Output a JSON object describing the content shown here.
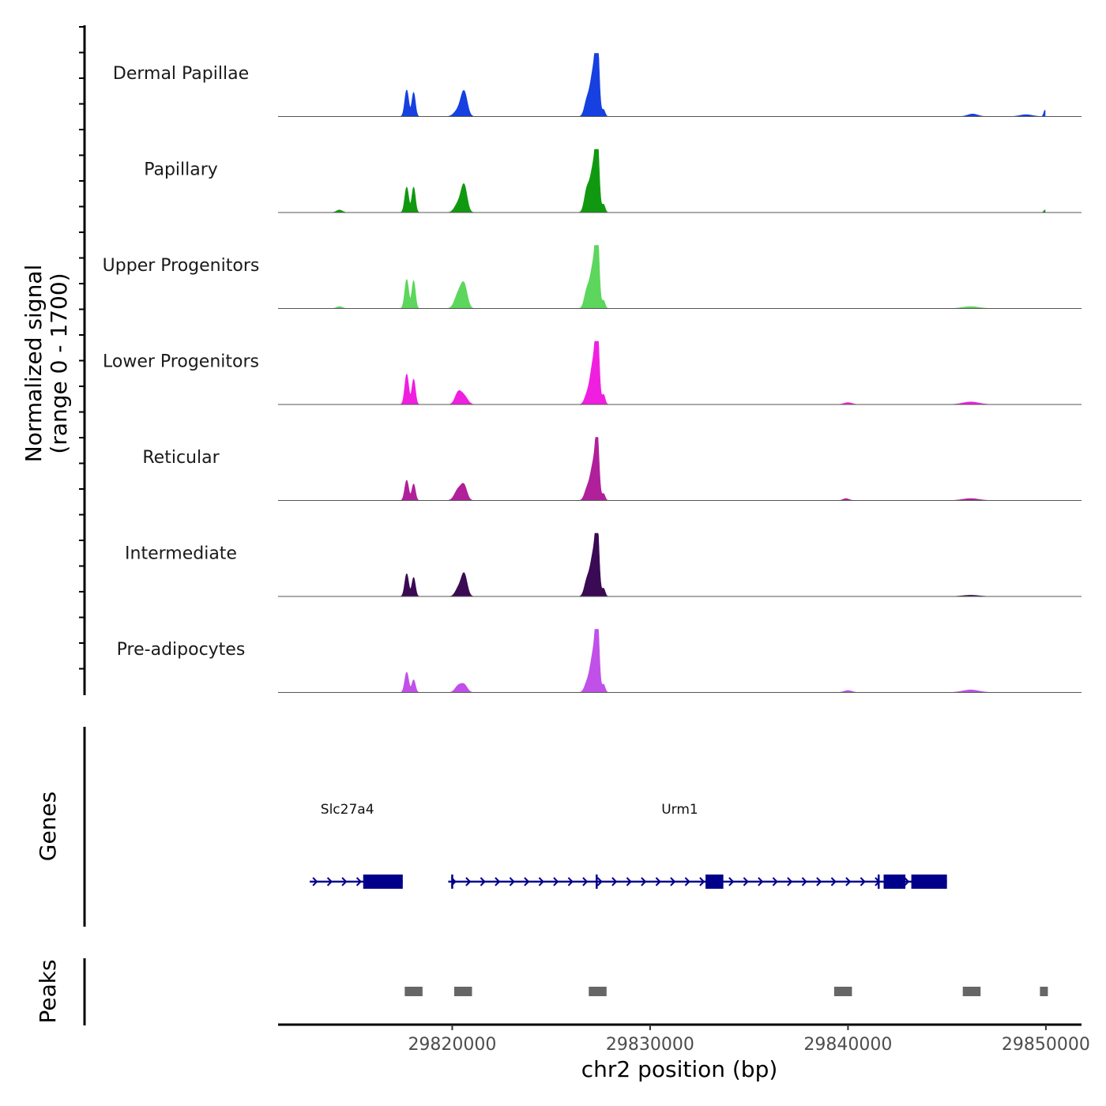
{
  "chart_data": {
    "type": "area",
    "title": "",
    "ylabel_line1": "Normalized signal",
    "ylabel_line2": "(range 0 - 1700)",
    "xlabel": "chr2 position (bp)",
    "xlim": [
      29811200,
      29851800
    ],
    "ylim": [
      0,
      1700
    ],
    "x_ticks": [
      29820000,
      29830000,
      29840000,
      29850000
    ],
    "x_tick_labels": [
      "29820000",
      "29830000",
      "29840000",
      "29850000"
    ],
    "genes_panel_label": "Genes",
    "peaks_panel_label": "Peaks",
    "peak_regions": [
      {
        "start": 29817600,
        "end": 29818500
      },
      {
        "start": 29820100,
        "end": 29821000
      },
      {
        "start": 29826900,
        "end": 29827800
      },
      {
        "start": 29839300,
        "end": 29840200
      },
      {
        "start": 29845800,
        "end": 29846700
      },
      {
        "start": 29849700,
        "end": 29850100
      }
    ],
    "peak_color": "#666666",
    "gene_color": "#00008B",
    "genes": [
      {
        "name": "Slc27a4",
        "label_x": 29814700,
        "start": 29812800,
        "end": 29817500,
        "exons": [
          [
            29815500,
            29817500
          ]
        ]
      },
      {
        "name": "Urm1",
        "label_x": 29831500,
        "start": 29819800,
        "end": 29845000,
        "exons": [
          [
            29819950,
            29820050
          ],
          [
            29827250,
            29827350
          ],
          [
            29832800,
            29833700
          ],
          [
            29841500,
            29841600
          ],
          [
            29841800,
            29842900
          ],
          [
            29843200,
            29845000
          ]
        ]
      }
    ],
    "series": [
      {
        "name": "Dermal Papillae",
        "color": "#1740E0",
        "peaks": [
          {
            "x": 29817700,
            "h": 0.42,
            "w": 100
          },
          {
            "x": 29818050,
            "h": 0.38,
            "w": 90
          },
          {
            "x": 29820300,
            "h": 0.1,
            "w": 200
          },
          {
            "x": 29820600,
            "h": 0.38,
            "w": 160
          },
          {
            "x": 29826800,
            "h": 0.22,
            "w": 130
          },
          {
            "x": 29827150,
            "h": 0.75,
            "w": 170
          },
          {
            "x": 29827330,
            "h": 1.0,
            "w": 90
          },
          {
            "x": 29827650,
            "h": 0.1,
            "w": 80
          },
          {
            "x": 29846300,
            "h": 0.04,
            "w": 250
          },
          {
            "x": 29849000,
            "h": 0.03,
            "w": 300
          },
          {
            "x": 29849950,
            "h": 0.1,
            "w": 60
          }
        ]
      },
      {
        "name": "Papillary",
        "color": "#109910",
        "peaks": [
          {
            "x": 29814300,
            "h": 0.04,
            "w": 150
          },
          {
            "x": 29817700,
            "h": 0.4,
            "w": 100
          },
          {
            "x": 29818050,
            "h": 0.4,
            "w": 90
          },
          {
            "x": 29820300,
            "h": 0.14,
            "w": 180
          },
          {
            "x": 29820600,
            "h": 0.42,
            "w": 150
          },
          {
            "x": 29826800,
            "h": 0.32,
            "w": 130
          },
          {
            "x": 29827150,
            "h": 0.75,
            "w": 170
          },
          {
            "x": 29827330,
            "h": 0.9,
            "w": 90
          },
          {
            "x": 29827650,
            "h": 0.12,
            "w": 80
          },
          {
            "x": 29849950,
            "h": 0.04,
            "w": 60
          }
        ]
      },
      {
        "name": "Upper Progenitors",
        "color": "#5CD65C",
        "peaks": [
          {
            "x": 29814300,
            "h": 0.03,
            "w": 150
          },
          {
            "x": 29817700,
            "h": 0.46,
            "w": 100
          },
          {
            "x": 29818050,
            "h": 0.44,
            "w": 90
          },
          {
            "x": 29820300,
            "h": 0.22,
            "w": 180
          },
          {
            "x": 29820600,
            "h": 0.36,
            "w": 160
          },
          {
            "x": 29826800,
            "h": 0.25,
            "w": 130
          },
          {
            "x": 29827150,
            "h": 0.72,
            "w": 170
          },
          {
            "x": 29827330,
            "h": 1.0,
            "w": 90
          },
          {
            "x": 29827650,
            "h": 0.12,
            "w": 80
          },
          {
            "x": 29846200,
            "h": 0.03,
            "w": 400
          }
        ]
      },
      {
        "name": "Lower Progenitors",
        "color": "#F01FE0",
        "peaks": [
          {
            "x": 29817700,
            "h": 0.48,
            "w": 100
          },
          {
            "x": 29818050,
            "h": 0.4,
            "w": 90
          },
          {
            "x": 29820300,
            "h": 0.18,
            "w": 160
          },
          {
            "x": 29820600,
            "h": 0.13,
            "w": 180
          },
          {
            "x": 29826800,
            "h": 0.12,
            "w": 130
          },
          {
            "x": 29827150,
            "h": 0.7,
            "w": 170
          },
          {
            "x": 29827330,
            "h": 1.0,
            "w": 90
          },
          {
            "x": 29827650,
            "h": 0.15,
            "w": 80
          },
          {
            "x": 29840000,
            "h": 0.03,
            "w": 200
          },
          {
            "x": 29846200,
            "h": 0.04,
            "w": 400
          }
        ]
      },
      {
        "name": "Reticular",
        "color": "#B0209A",
        "peaks": [
          {
            "x": 29817700,
            "h": 0.32,
            "w": 100
          },
          {
            "x": 29818050,
            "h": 0.26,
            "w": 90
          },
          {
            "x": 29820300,
            "h": 0.17,
            "w": 180
          },
          {
            "x": 29820600,
            "h": 0.22,
            "w": 150
          },
          {
            "x": 29826800,
            "h": 0.15,
            "w": 130
          },
          {
            "x": 29827150,
            "h": 0.6,
            "w": 170
          },
          {
            "x": 29827330,
            "h": 0.8,
            "w": 90
          },
          {
            "x": 29827650,
            "h": 0.1,
            "w": 80
          },
          {
            "x": 29839900,
            "h": 0.03,
            "w": 150
          },
          {
            "x": 29846200,
            "h": 0.03,
            "w": 400
          }
        ]
      },
      {
        "name": "Intermediate",
        "color": "#3A0A55",
        "peaks": [
          {
            "x": 29817700,
            "h": 0.36,
            "w": 100
          },
          {
            "x": 29818050,
            "h": 0.3,
            "w": 90
          },
          {
            "x": 29820300,
            "h": 0.12,
            "w": 150
          },
          {
            "x": 29820600,
            "h": 0.36,
            "w": 150
          },
          {
            "x": 29826800,
            "h": 0.22,
            "w": 130
          },
          {
            "x": 29827150,
            "h": 0.7,
            "w": 170
          },
          {
            "x": 29827330,
            "h": 0.87,
            "w": 90
          },
          {
            "x": 29827650,
            "h": 0.12,
            "w": 80
          },
          {
            "x": 29846200,
            "h": 0.02,
            "w": 400
          }
        ]
      },
      {
        "name": "Pre-adipocytes",
        "color": "#C050E8",
        "peaks": [
          {
            "x": 29817700,
            "h": 0.32,
            "w": 100
          },
          {
            "x": 29818050,
            "h": 0.2,
            "w": 90
          },
          {
            "x": 29820300,
            "h": 0.1,
            "w": 160
          },
          {
            "x": 29820600,
            "h": 0.12,
            "w": 160
          },
          {
            "x": 29826800,
            "h": 0.12,
            "w": 130
          },
          {
            "x": 29827150,
            "h": 0.65,
            "w": 170
          },
          {
            "x": 29827330,
            "h": 1.0,
            "w": 90
          },
          {
            "x": 29827650,
            "h": 0.12,
            "w": 80
          },
          {
            "x": 29840000,
            "h": 0.03,
            "w": 200
          },
          {
            "x": 29846200,
            "h": 0.04,
            "w": 400
          }
        ]
      }
    ]
  }
}
